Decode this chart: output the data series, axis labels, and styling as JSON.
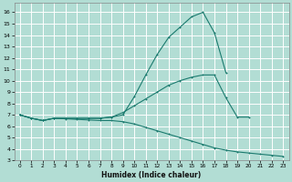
{
  "xlabel": "Humidex (Indice chaleur)",
  "bg_color": "#b2ddd4",
  "grid_color": "#ffffff",
  "line_color": "#1a7a6e",
  "xlim": [
    -0.5,
    23.5
  ],
  "ylim": [
    3,
    16.8
  ],
  "xticks": [
    0,
    1,
    2,
    3,
    4,
    5,
    6,
    7,
    8,
    9,
    10,
    11,
    12,
    13,
    14,
    15,
    16,
    17,
    18,
    19,
    20,
    21,
    22,
    23
  ],
  "yticks": [
    3,
    4,
    5,
    6,
    7,
    8,
    9,
    10,
    11,
    12,
    13,
    14,
    15,
    16
  ],
  "line1_y": [
    7.0,
    6.7,
    6.5,
    6.7,
    6.7,
    6.7,
    6.7,
    6.7,
    6.8,
    7.0,
    8.6,
    10.5,
    12.3,
    13.8,
    14.7,
    15.6,
    16.0,
    14.2,
    10.7,
    null,
    null,
    null,
    null,
    null
  ],
  "line2_y": [
    7.0,
    6.7,
    6.5,
    6.7,
    6.7,
    6.7,
    6.7,
    6.7,
    6.8,
    7.2,
    7.8,
    8.4,
    9.0,
    9.6,
    10.0,
    10.3,
    10.5,
    10.5,
    8.5,
    6.8,
    6.8,
    null,
    null,
    null
  ],
  "line3_y": [
    7.0,
    6.7,
    6.5,
    6.7,
    6.65,
    6.6,
    6.55,
    6.5,
    6.5,
    6.4,
    6.2,
    5.9,
    5.6,
    5.3,
    5.0,
    4.7,
    4.4,
    4.1,
    3.9,
    3.75,
    3.65,
    3.55,
    3.45,
    3.35
  ]
}
